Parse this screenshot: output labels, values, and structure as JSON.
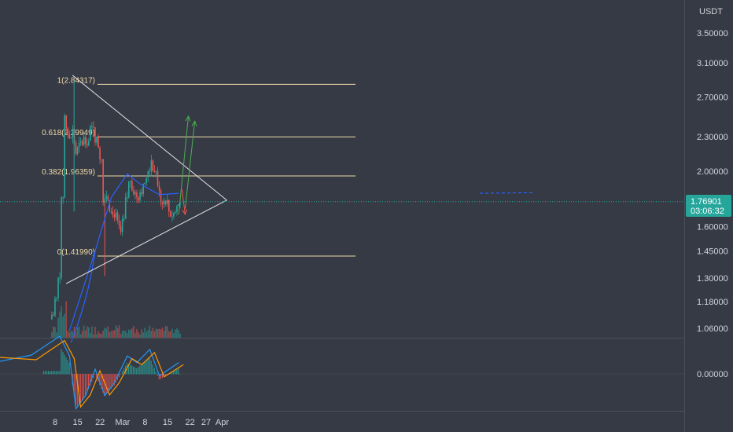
{
  "price_axis": {
    "currency": "USDT",
    "ticks": [
      "3.50000",
      "3.10000",
      "2.70000",
      "2.30000",
      "2.00000",
      "1.60000",
      "1.45000",
      "1.30000",
      "1.18000",
      "1.06000"
    ],
    "last_price": "1.76901",
    "countdown": "03:06:32"
  },
  "indicator_axis": {
    "ticks": [
      "0.00000"
    ]
  },
  "time_axis": {
    "ticks": [
      "8",
      "15",
      "22",
      "Mar",
      "8",
      "15",
      "22",
      "27",
      "Apr"
    ]
  },
  "fib_levels": [
    {
      "label": "1(2.84317)",
      "value": 2.84317
    },
    {
      "label": "0.618(2.29949)",
      "value": 2.29949
    },
    {
      "label": "0.382(1.96359)",
      "value": 1.96359
    },
    {
      "label": "0(1.41990)",
      "value": 1.4199
    }
  ],
  "colors": {
    "background": "#363a45",
    "up": "#26a69a",
    "down": "#ef5350",
    "ma_line": "#2962ff",
    "fib_line": "#f0d9a8",
    "triangle": "#e6e6e6",
    "bull_arrow": "#4caf50",
    "bear_arrow": "#ef5350",
    "macd_line": "#2196f3",
    "signal_line": "#ff9800",
    "price_badge": "#26a69a"
  },
  "chart_data": {
    "type": "candlestick",
    "symbol_quote": "USDT",
    "log_scale": true,
    "price_range": [
      1.0,
      3.8
    ],
    "date_range": [
      "2021-02-04",
      "2021-04-02"
    ],
    "last_price": 1.76901,
    "fibonacci_retracement": [
      {
        "ratio": 1,
        "price": 2.84317
      },
      {
        "ratio": 0.618,
        "price": 2.29949
      },
      {
        "ratio": 0.382,
        "price": 1.96359
      },
      {
        "ratio": 0,
        "price": 1.4199
      }
    ],
    "candles_approx": [
      {
        "date": "2021-02-07",
        "open": 1.1,
        "high": 1.2,
        "low": 1.05,
        "close": 1.12
      },
      {
        "date": "2021-02-08",
        "open": 1.12,
        "high": 1.3,
        "low": 1.1,
        "close": 1.26
      },
      {
        "date": "2021-02-09",
        "open": 1.26,
        "high": 1.8,
        "low": 1.2,
        "close": 1.75
      },
      {
        "date": "2021-02-10",
        "open": 1.75,
        "high": 2.84,
        "low": 1.7,
        "close": 2.6
      },
      {
        "date": "2021-02-11",
        "open": 2.6,
        "high": 2.8,
        "low": 2.2,
        "close": 2.4
      },
      {
        "date": "2021-02-12",
        "open": 2.4,
        "high": 2.5,
        "low": 2.1,
        "close": 2.25
      },
      {
        "date": "2021-02-13",
        "open": 2.25,
        "high": 2.45,
        "low": 2.05,
        "close": 2.35
      },
      {
        "date": "2021-02-14",
        "open": 2.35,
        "high": 2.45,
        "low": 2.0,
        "close": 2.15
      },
      {
        "date": "2021-02-15",
        "open": 2.15,
        "high": 2.3,
        "low": 2.0,
        "close": 2.2
      },
      {
        "date": "2021-02-16",
        "open": 2.2,
        "high": 2.35,
        "low": 2.05,
        "close": 2.25
      },
      {
        "date": "2021-02-17",
        "open": 2.25,
        "high": 2.4,
        "low": 2.1,
        "close": 2.3
      },
      {
        "date": "2021-02-18",
        "open": 2.3,
        "high": 2.4,
        "low": 2.15,
        "close": 2.25
      },
      {
        "date": "2021-02-19",
        "open": 2.25,
        "high": 2.65,
        "low": 2.2,
        "close": 2.55
      },
      {
        "date": "2021-02-20",
        "open": 2.55,
        "high": 2.6,
        "low": 2.2,
        "close": 2.3
      },
      {
        "date": "2021-02-21",
        "open": 2.3,
        "high": 2.45,
        "low": 2.1,
        "close": 2.2
      },
      {
        "date": "2021-02-22",
        "open": 2.2,
        "high": 2.25,
        "low": 1.35,
        "close": 1.7
      },
      {
        "date": "2021-02-23",
        "open": 1.7,
        "high": 1.95,
        "low": 1.4,
        "close": 1.85
      },
      {
        "date": "2021-02-24",
        "open": 1.85,
        "high": 1.95,
        "low": 1.7,
        "close": 1.8
      },
      {
        "date": "2021-02-25",
        "open": 1.8,
        "high": 1.9,
        "low": 1.6,
        "close": 1.65
      },
      {
        "date": "2021-02-26",
        "open": 1.65,
        "high": 1.75,
        "low": 1.5,
        "close": 1.7
      },
      {
        "date": "2021-02-27",
        "open": 1.7,
        "high": 1.75,
        "low": 1.55,
        "close": 1.6
      },
      {
        "date": "2021-02-28",
        "open": 1.6,
        "high": 1.65,
        "low": 1.42,
        "close": 1.55
      },
      {
        "date": "2021-03-01",
        "open": 1.55,
        "high": 1.8,
        "low": 1.5,
        "close": 1.78
      },
      {
        "date": "2021-03-02",
        "open": 1.78,
        "high": 1.95,
        "low": 1.7,
        "close": 1.85
      },
      {
        "date": "2021-03-03",
        "open": 1.85,
        "high": 2.0,
        "low": 1.8,
        "close": 1.95
      },
      {
        "date": "2021-03-04",
        "open": 1.95,
        "high": 2.0,
        "low": 1.8,
        "close": 1.85
      },
      {
        "date": "2021-03-05",
        "open": 1.85,
        "high": 1.95,
        "low": 1.75,
        "close": 1.8
      },
      {
        "date": "2021-03-06",
        "open": 1.8,
        "high": 1.9,
        "low": 1.75,
        "close": 1.85
      },
      {
        "date": "2021-03-07",
        "open": 1.85,
        "high": 1.95,
        "low": 1.8,
        "close": 1.9
      },
      {
        "date": "2021-03-08",
        "open": 1.9,
        "high": 2.0,
        "low": 1.85,
        "close": 1.95
      },
      {
        "date": "2021-03-09",
        "open": 1.95,
        "high": 2.2,
        "low": 1.9,
        "close": 2.15
      },
      {
        "date": "2021-03-10",
        "open": 2.15,
        "high": 2.2,
        "low": 2.0,
        "close": 2.05
      },
      {
        "date": "2021-03-11",
        "open": 2.05,
        "high": 2.1,
        "low": 1.85,
        "close": 1.9
      },
      {
        "date": "2021-03-12",
        "open": 1.9,
        "high": 1.95,
        "low": 1.75,
        "close": 1.8
      },
      {
        "date": "2021-03-13",
        "open": 1.8,
        "high": 1.85,
        "low": 1.65,
        "close": 1.75
      },
      {
        "date": "2021-03-14",
        "open": 1.75,
        "high": 1.85,
        "low": 1.7,
        "close": 1.8
      },
      {
        "date": "2021-03-15",
        "open": 1.8,
        "high": 1.85,
        "low": 1.65,
        "close": 1.7
      },
      {
        "date": "2021-03-16",
        "open": 1.7,
        "high": 1.75,
        "low": 1.62,
        "close": 1.68
      },
      {
        "date": "2021-03-17",
        "open": 1.68,
        "high": 1.75,
        "low": 1.63,
        "close": 1.7
      },
      {
        "date": "2021-03-18",
        "open": 1.7,
        "high": 1.78,
        "low": 1.66,
        "close": 1.769
      }
    ],
    "moving_average_approx": [
      {
        "date": "2021-02-12",
        "value": 1.05
      },
      {
        "date": "2021-02-20",
        "value": 1.45
      },
      {
        "date": "2021-02-25",
        "value": 1.8
      },
      {
        "date": "2021-03-02",
        "value": 1.98
      },
      {
        "date": "2021-03-06",
        "value": 1.9
      },
      {
        "date": "2021-03-12",
        "value": 1.82
      },
      {
        "date": "2021-03-18",
        "value": 1.83
      }
    ],
    "triangle": {
      "upper": [
        {
          "date": "2021-02-10",
          "price": 2.95
        },
        {
          "date": "2021-03-31",
          "price": 1.78
        }
      ],
      "lower": [
        {
          "date": "2021-02-09",
          "price": 1.27
        },
        {
          "date": "2021-03-31",
          "price": 1.78
        }
      ]
    },
    "projection_arrows": [
      {
        "direction": "up",
        "from": {
          "date": "2021-03-18",
          "price": 1.68
        },
        "to": {
          "date": "2021-03-21",
          "price": 2.5
        }
      },
      {
        "direction": "up",
        "from": {
          "date": "2021-03-20",
          "price": 1.72
        },
        "to": {
          "date": "2021-03-23",
          "price": 2.45
        }
      },
      {
        "direction": "down",
        "from": {
          "date": "2021-03-19",
          "price": 1.86
        },
        "to": {
          "date": "2021-03-20",
          "price": 1.68
        }
      }
    ],
    "macd": {
      "zero_label": "0.00000",
      "histogram_approx": [
        {
          "date": "2021-02-09",
          "value": 0.05
        },
        {
          "date": "2021-02-12",
          "value": 0.02
        },
        {
          "date": "2021-02-14",
          "value": -0.06
        },
        {
          "date": "2021-02-17",
          "value": -0.04
        },
        {
          "date": "2021-02-20",
          "value": 0.0
        },
        {
          "date": "2021-02-23",
          "value": -0.04
        },
        {
          "date": "2021-02-26",
          "value": -0.02
        },
        {
          "date": "2021-03-02",
          "value": 0.02
        },
        {
          "date": "2021-03-05",
          "value": 0.01
        },
        {
          "date": "2021-03-09",
          "value": 0.03
        },
        {
          "date": "2021-03-12",
          "value": -0.01
        },
        {
          "date": "2021-03-15",
          "value": 0.0
        },
        {
          "date": "2021-03-18",
          "value": 0.01
        }
      ]
    }
  }
}
